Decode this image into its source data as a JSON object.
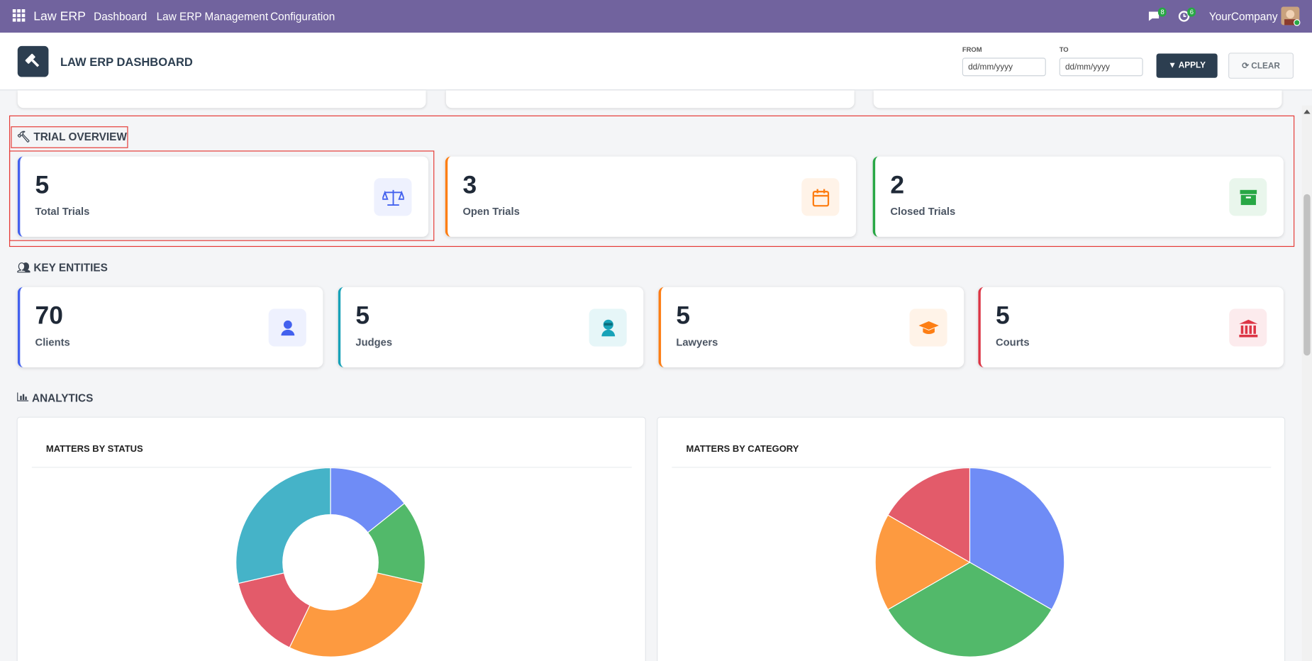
{
  "navbar": {
    "app_name": "Law ERP",
    "menu": [
      "Dashboard",
      "Law ERP Management",
      "Configuration"
    ],
    "messages_badge": 8,
    "activities_badge": 6,
    "company": "YourCompany"
  },
  "header": {
    "title": "LAW ERP DASHBOARD",
    "from_label": "FROM",
    "to_label": "TO",
    "from_placeholder": "dd/mm/yyyy",
    "to_placeholder": "dd/mm/yyyy",
    "apply": "APPLY",
    "clear": "CLEAR"
  },
  "sections": [
    {
      "title": "TRIAL OVERVIEW",
      "cards": [
        {
          "value": 5,
          "label": "Total Trials"
        },
        {
          "value": 3,
          "label": "Open Trials"
        },
        {
          "value": 2,
          "label": "Closed Trials"
        }
      ]
    },
    {
      "title": "KEY ENTITIES",
      "cards": [
        {
          "value": 70,
          "label": "Clients"
        },
        {
          "value": 5,
          "label": "Judges"
        },
        {
          "value": 5,
          "label": "Lawyers"
        },
        {
          "value": 5,
          "label": "Courts"
        }
      ]
    },
    {
      "title": "ANALYTICS"
    }
  ],
  "charts": [
    {
      "type": "donut",
      "title": "MATTERS BY STATUS",
      "values": [
        1,
        1,
        2,
        1,
        2
      ],
      "colors": [
        "#6f8cf6",
        "#52b96a",
        "#fd9a40",
        "#e35b6a",
        "#45b3c8"
      ]
    },
    {
      "type": "pie",
      "title": "MATTERS BY CATEGORY",
      "values": [
        2,
        2,
        1,
        1
      ],
      "colors": [
        "#6f8cf6",
        "#52b96a",
        "#fd9a40",
        "#e35b6a"
      ]
    }
  ]
}
